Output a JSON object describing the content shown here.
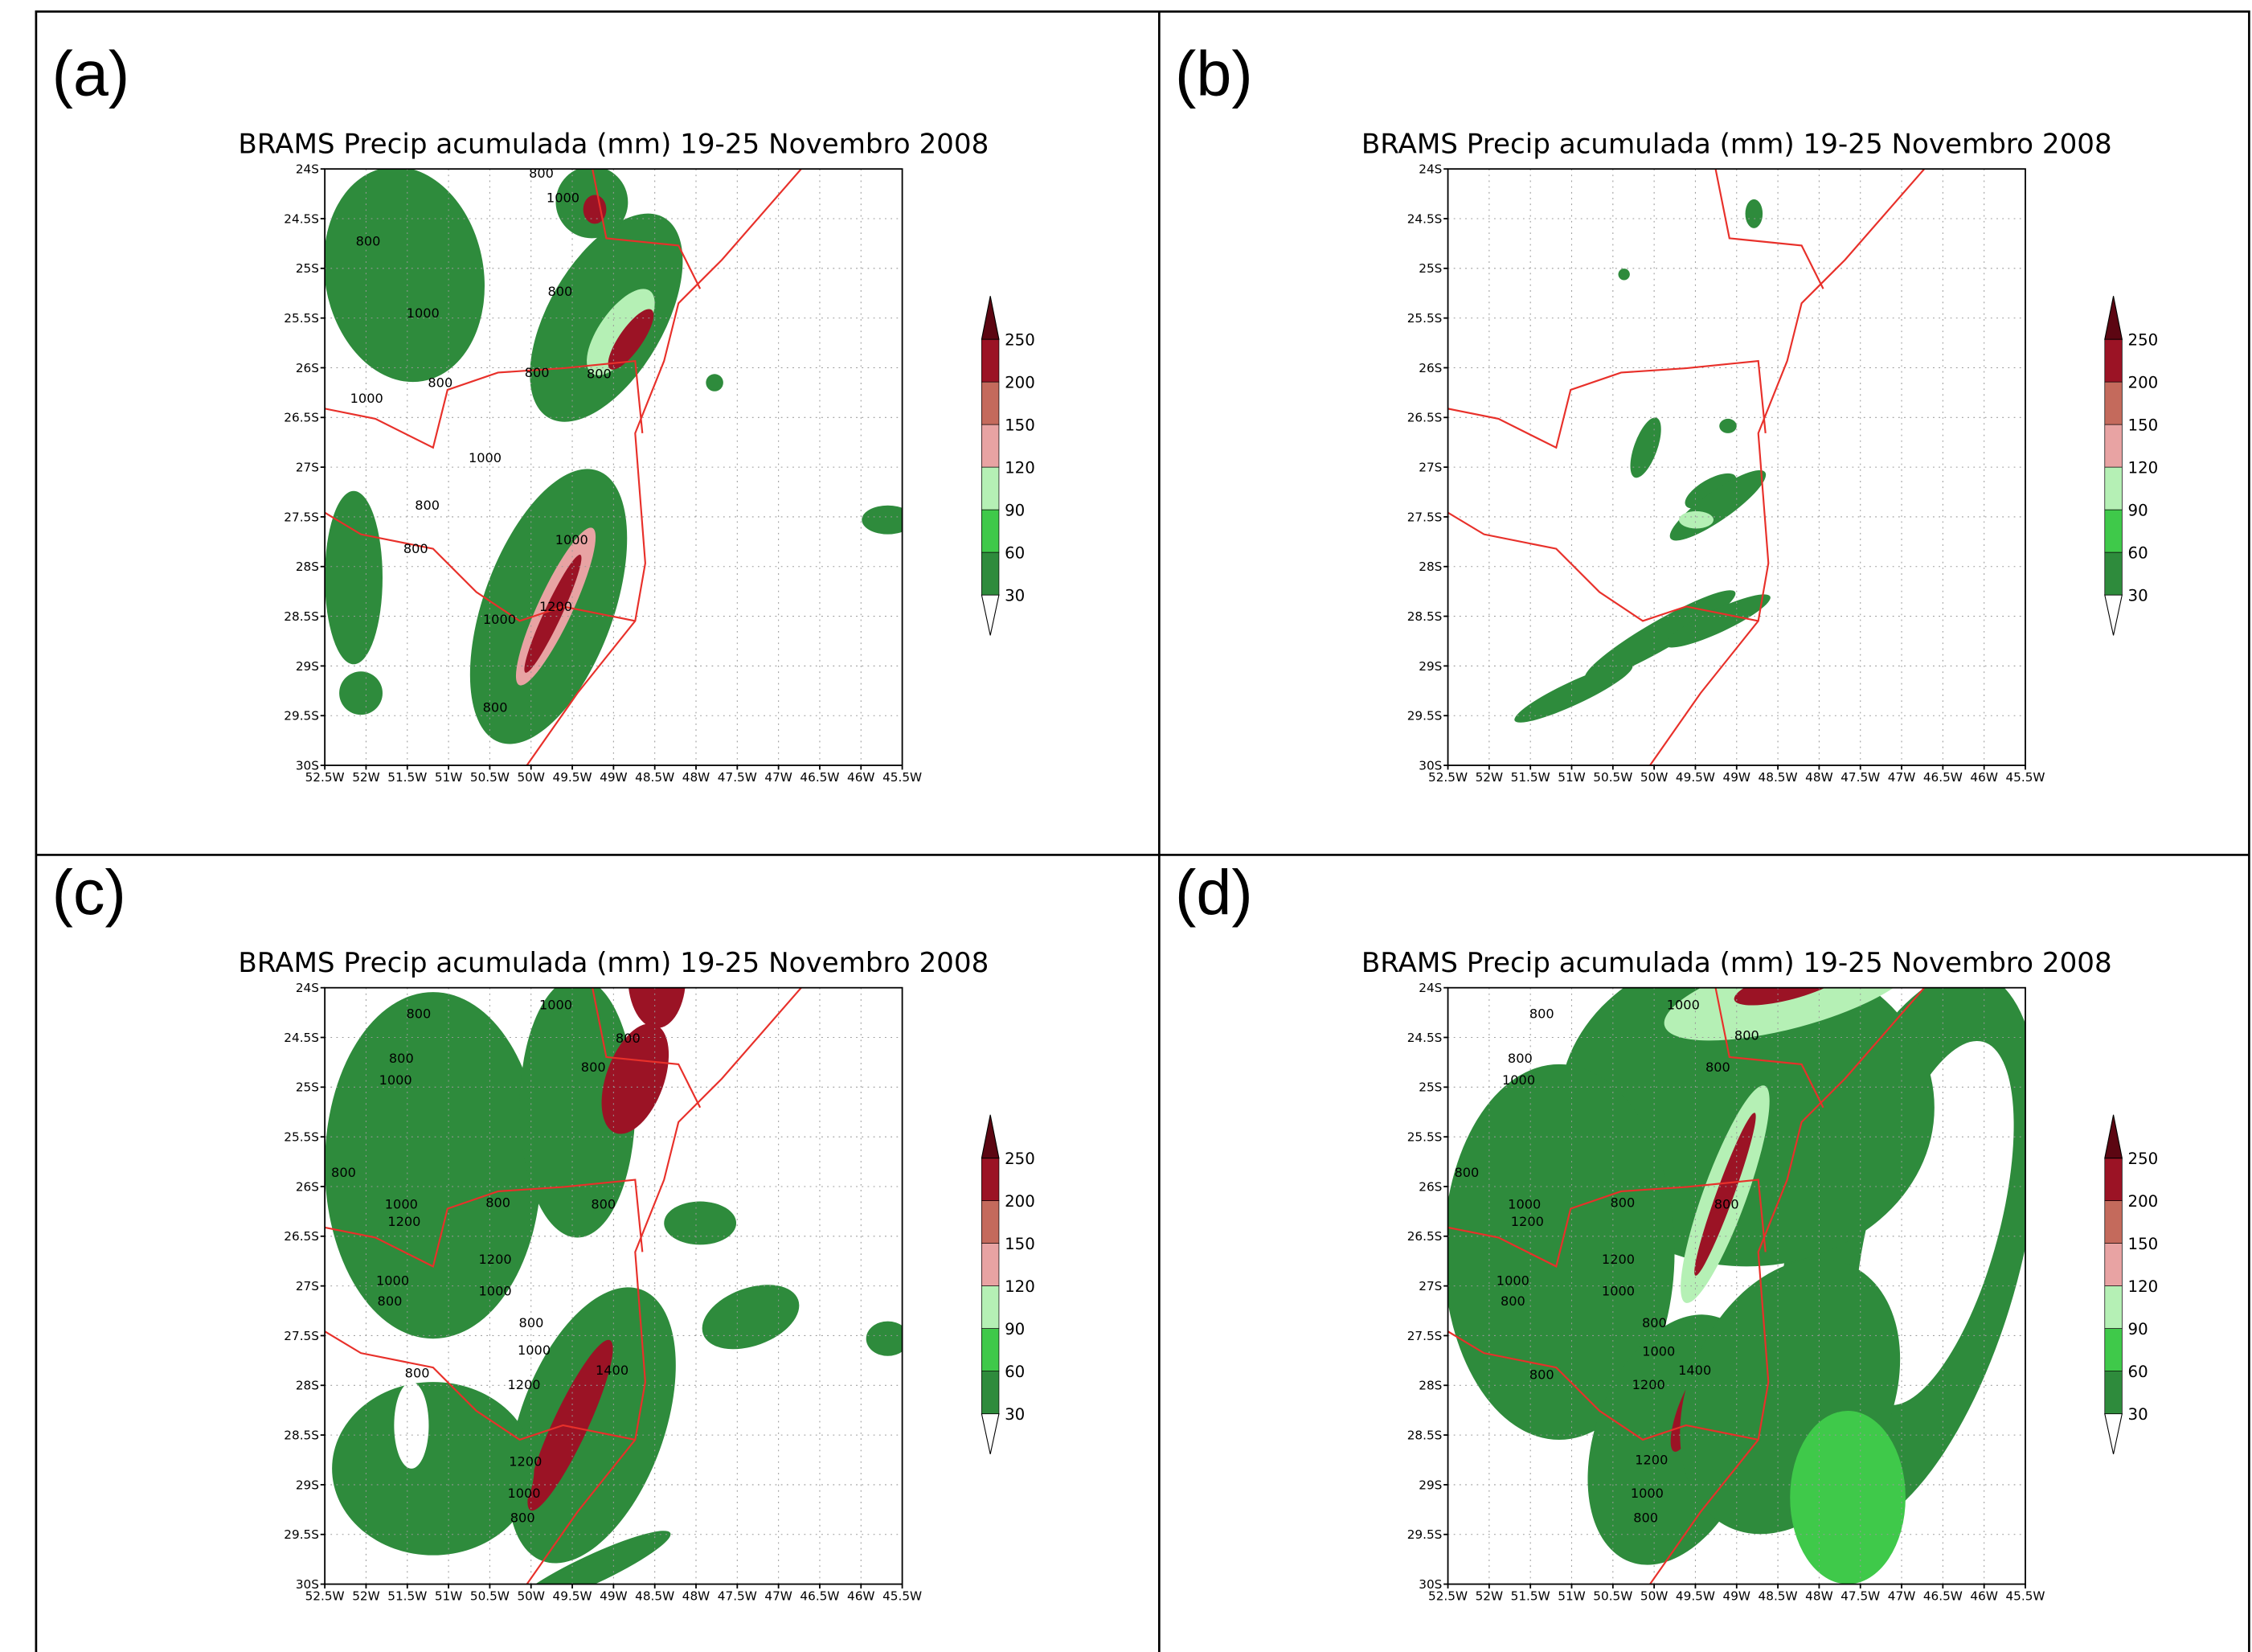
{
  "panels": [
    {
      "label": "(a)",
      "title": "BRAMS Precip acumulada (mm) 19-25 Novembro 2008",
      "contour_labels": [
        "800",
        "1000",
        "800",
        "800",
        "1000",
        "800",
        "800",
        "800",
        "1000",
        "1000",
        "800",
        "1000",
        "800",
        "1200",
        "1000",
        "800"
      ]
    },
    {
      "label": "(b)",
      "title": "BRAMS Precip acumulada (mm) 19-25 Novembro 2008"
    },
    {
      "label": "(c)",
      "title": "BRAMS Precip acumulada (mm) 19-25 Novembro 2008",
      "contour_labels": [
        "800",
        "1000",
        "800",
        "800",
        "1000",
        "800",
        "800",
        "1000",
        "1200",
        "800",
        "800",
        "1200",
        "1000",
        "1000",
        "800",
        "800",
        "1000",
        "1400",
        "1200",
        "800",
        "1200",
        "1000",
        "800"
      ]
    },
    {
      "label": "(d)",
      "title": "BRAMS Precip acumulada (mm) 19-25 Novembro 2008",
      "contour_labels": [
        "800",
        "1000",
        "800",
        "800",
        "800",
        "1000",
        "800",
        "800",
        "800",
        "1000",
        "1200",
        "1200",
        "1000",
        "1000",
        "800",
        "800",
        "1000",
        "1400",
        "1200",
        "800",
        "1200",
        "1000",
        "800"
      ]
    }
  ],
  "y_tick_labels": [
    "24S",
    "24.5S",
    "25S",
    "25.5S",
    "26S",
    "26.5S",
    "27S",
    "27.5S",
    "28S",
    "28.5S",
    "29S",
    "29.5S",
    "30S"
  ],
  "x_tick_labels": [
    "52.5W",
    "52W",
    "51.5W",
    "51W",
    "50.5W",
    "50W",
    "49.5W",
    "49W",
    "48.5W",
    "48W",
    "47.5W",
    "47W",
    "46.5W",
    "46W",
    "45.5W"
  ],
  "colorbar": {
    "levels": [
      30,
      60,
      90,
      120,
      150,
      200,
      250
    ],
    "colors": [
      "#ffffff",
      "#2e8b3c",
      "#3fc94a",
      "#b5f0b5",
      "#e8a3a3",
      "#c46a5c",
      "#9b1325",
      "#5c0612"
    ]
  }
}
